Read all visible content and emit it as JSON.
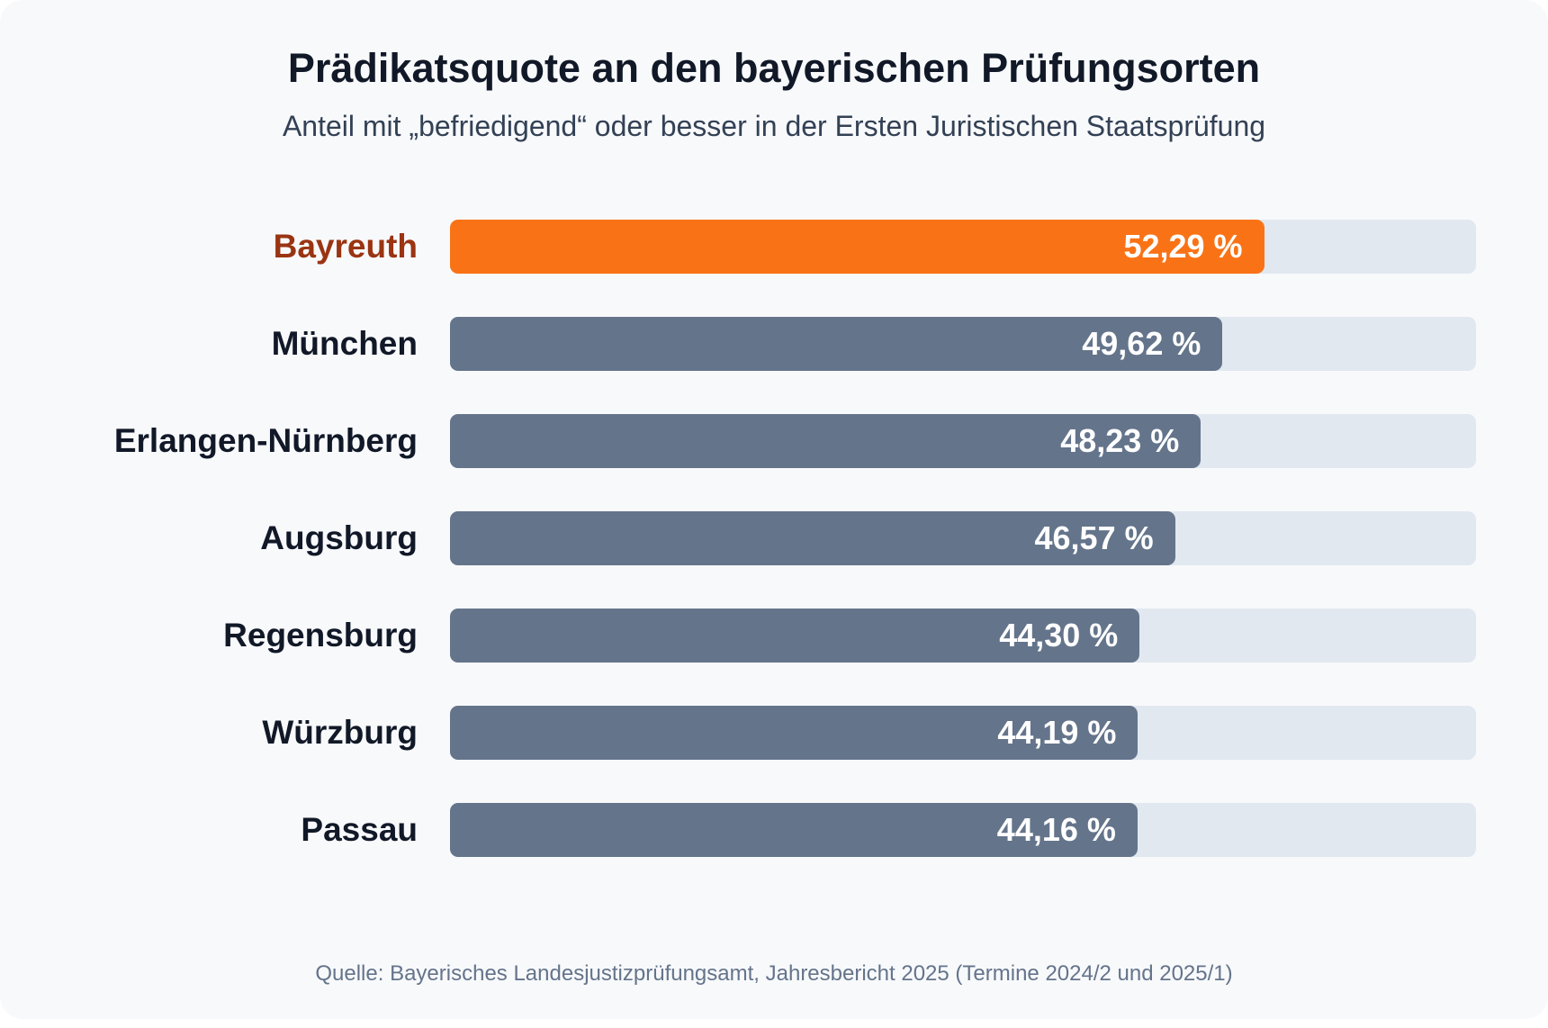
{
  "chart_data": {
    "type": "bar",
    "orientation": "horizontal",
    "title": "Prädikatsquote an den bayerischen Prüfungsorten",
    "subtitle": "Anteil mit „befriedigend“ oder besser in der Ersten Juristischen Staatsprüfung",
    "categories": [
      "Bayreuth",
      "München",
      "Erlangen-Nürnberg",
      "Augsburg",
      "Regensburg",
      "Würzburg",
      "Passau"
    ],
    "values": [
      52.29,
      49.62,
      48.23,
      46.57,
      44.3,
      44.19,
      44.16
    ],
    "value_labels": [
      "52,29 %",
      "49,62 %",
      "48,23 %",
      "46,57 %",
      "44,30 %",
      "44,19 %",
      "44,16 %"
    ],
    "highlight_category": "Bayreuth",
    "xlim": [
      0,
      65.9
    ],
    "grid": false,
    "legend": "none",
    "source": "Quelle: Bayerisches Landesjustizprüfungsamt, Jahresbericht 2025 (Termine 2024/2 und 2025/1)"
  },
  "colors": {
    "highlight": "#f97316",
    "highlight_label": "#9a3412",
    "bar": "#64748b",
    "track": "#e2e8f0",
    "background": "#f8f9fb"
  }
}
